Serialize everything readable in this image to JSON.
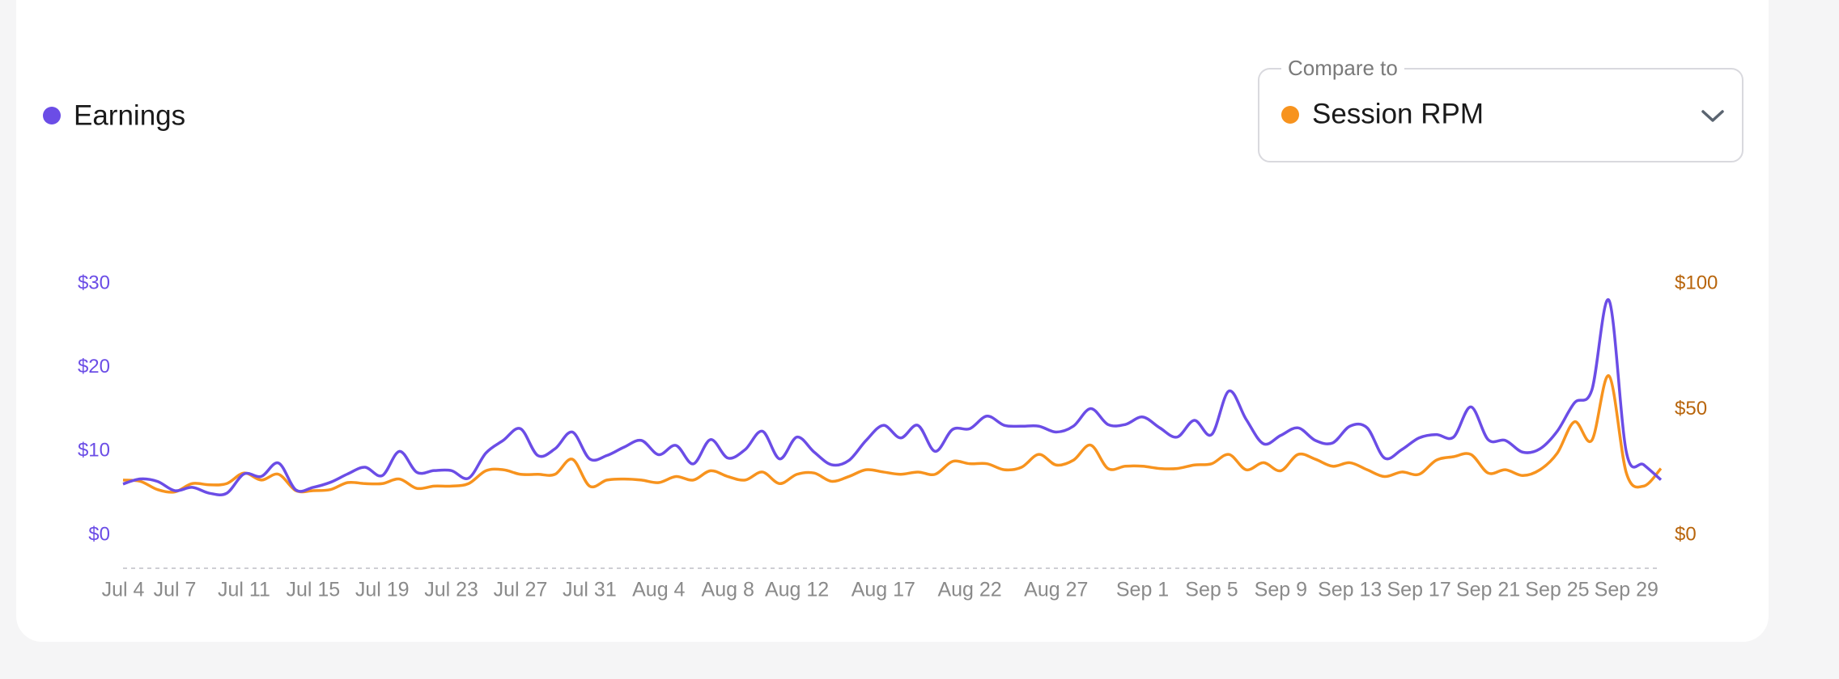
{
  "chart_data": {
    "type": "line",
    "compare_label": "Compare to",
    "categories": [
      "Jul 4",
      null,
      null,
      "Jul 7",
      null,
      null,
      null,
      "Jul 11",
      null,
      null,
      null,
      "Jul 15",
      null,
      null,
      null,
      "Jul 19",
      null,
      null,
      null,
      "Jul 23",
      null,
      null,
      null,
      "Jul 27",
      null,
      null,
      null,
      "Jul 31",
      null,
      null,
      null,
      "Aug 4",
      null,
      null,
      null,
      "Aug 8",
      null,
      null,
      null,
      "Aug 12",
      null,
      null,
      null,
      null,
      "Aug 17",
      null,
      null,
      null,
      null,
      "Aug 22",
      null,
      null,
      null,
      null,
      "Aug 27",
      null,
      null,
      null,
      null,
      "Sep 1",
      null,
      null,
      null,
      "Sep 5",
      null,
      null,
      null,
      "Sep 9",
      null,
      null,
      null,
      "Sep 13",
      null,
      null,
      null,
      "Sep 17",
      null,
      null,
      null,
      "Sep 21",
      null,
      null,
      null,
      "Sep 25",
      null,
      null,
      null,
      "Sep 29",
      null,
      null
    ],
    "series": [
      {
        "name": "Earnings",
        "color": "#6b4de6",
        "axis": "y",
        "values": [
          6.1,
          6.7,
          6.4,
          5.3,
          5.7,
          5.0,
          5.0,
          7.3,
          7.0,
          8.6,
          5.4,
          5.7,
          6.3,
          7.3,
          8.1,
          7.1,
          10.0,
          7.5,
          7.7,
          7.7,
          6.8,
          9.8,
          11.3,
          12.7,
          9.5,
          10.3,
          12.3,
          9.1,
          9.5,
          10.5,
          11.3,
          9.6,
          10.7,
          8.5,
          11.4,
          9.2,
          10.2,
          12.4,
          9.1,
          11.7,
          9.9,
          8.4,
          8.9,
          11.3,
          13.1,
          11.6,
          13.1,
          10.0,
          12.6,
          12.7,
          14.2,
          13.1,
          13.0,
          13.0,
          12.3,
          13.0,
          15.1,
          13.2,
          13.2,
          14.1,
          12.8,
          11.7,
          13.7,
          12.0,
          17.2,
          13.8,
          10.9,
          11.9,
          12.8,
          11.3,
          11.0,
          13.0,
          12.8,
          9.2,
          10.2,
          11.6,
          12.0,
          11.7,
          15.3,
          11.4,
          11.3,
          9.9,
          10.3,
          12.4,
          15.8,
          17.3,
          28.0,
          9.9,
          8.4,
          6.6
        ]
      },
      {
        "name": "Session RPM",
        "color": "#f7931e",
        "axis": "y2",
        "values": [
          21.9,
          21.4,
          18.1,
          17.2,
          20.5,
          20.0,
          20.5,
          24.7,
          21.9,
          24.2,
          17.7,
          17.7,
          18.1,
          20.9,
          20.5,
          20.5,
          22.3,
          18.6,
          19.5,
          19.5,
          20.5,
          25.6,
          26.0,
          24.2,
          24.2,
          24.2,
          30.2,
          19.5,
          21.9,
          22.3,
          21.9,
          20.9,
          23.3,
          21.9,
          25.6,
          23.3,
          21.9,
          25.1,
          20.5,
          24.2,
          24.7,
          21.4,
          23.3,
          26.0,
          25.1,
          24.2,
          25.1,
          24.2,
          29.3,
          28.4,
          28.4,
          26.0,
          27.0,
          32.1,
          27.9,
          29.8,
          35.8,
          26.5,
          27.4,
          27.4,
          26.5,
          26.5,
          27.9,
          28.4,
          32.1,
          26.0,
          28.8,
          25.6,
          32.1,
          30.2,
          27.4,
          28.8,
          26.0,
          23.3,
          25.1,
          24.2,
          29.8,
          31.2,
          32.1,
          24.7,
          26.0,
          23.7,
          26.0,
          32.6,
          45.1,
          37.7,
          63.3,
          24.7,
          19.5,
          26.5
        ]
      }
    ],
    "ylim": [
      0,
      30
    ],
    "yticks": [
      {
        "value": 0,
        "label": "$0"
      },
      {
        "value": 10,
        "label": "$10"
      },
      {
        "value": 20,
        "label": "$20"
      },
      {
        "value": 30,
        "label": "$30"
      }
    ],
    "y2lim": [
      0,
      100
    ],
    "y2ticks": [
      {
        "value": 0,
        "label": "$0"
      },
      {
        "value": 50,
        "label": "$50"
      },
      {
        "value": 100,
        "label": "$100"
      }
    ],
    "ytick_color": "#6b4de6",
    "y2tick_color": "#b8650c",
    "grid": false
  }
}
